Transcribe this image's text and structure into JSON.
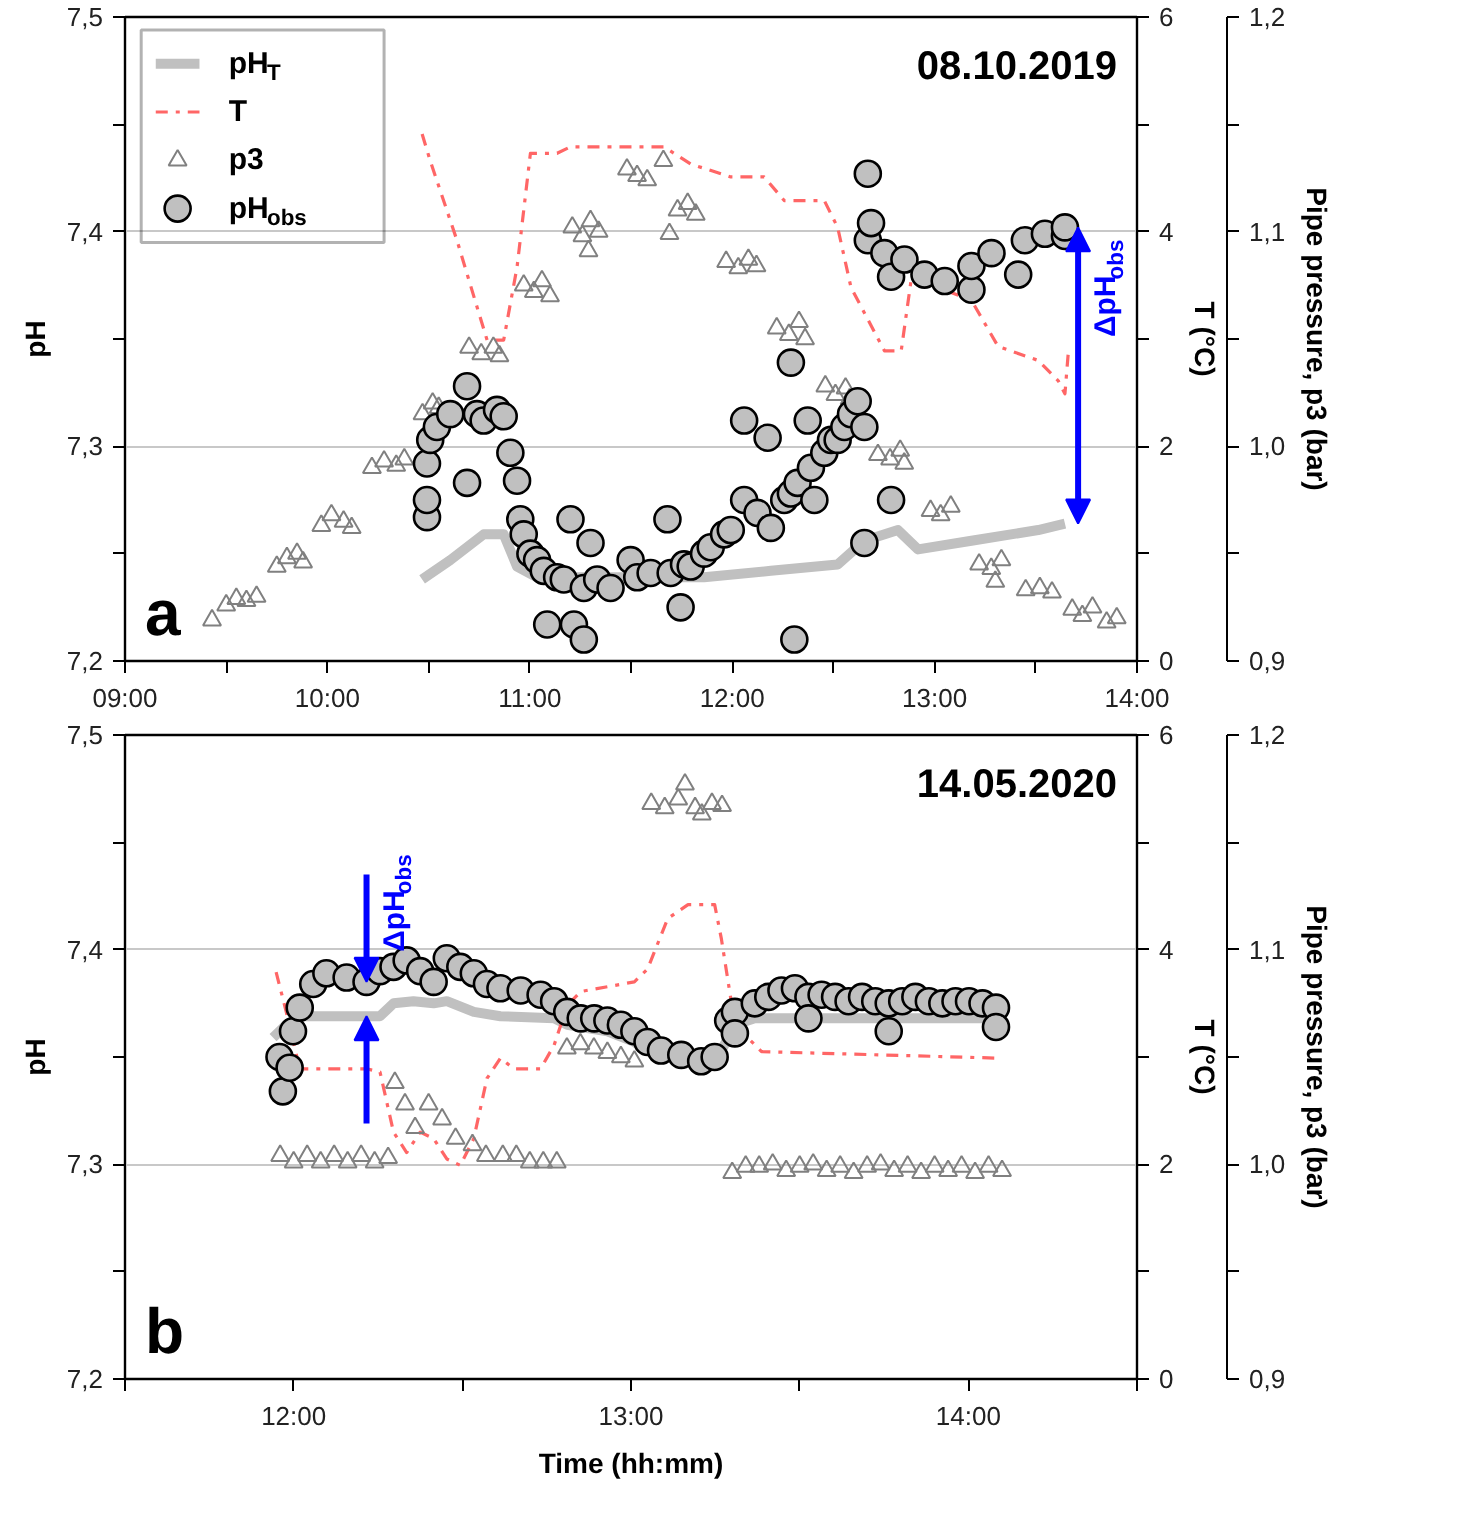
{
  "chart_data": [
    {
      "type": "line",
      "title": "08.10.2019",
      "ylabel": "pH",
      "y2label": "T (°C)",
      "y3label": "Pipe pressure, p3 (bar)",
      "xlim": [
        9,
        14
      ],
      "xticks": [
        {
          "value": 9,
          "label": "09:00"
        },
        {
          "value": 9.5,
          "label": null
        },
        {
          "value": 10,
          "label": "10:00"
        },
        {
          "value": 10.5,
          "label": null
        },
        {
          "value": 11,
          "label": "11:00"
        },
        {
          "value": 11.5,
          "label": null
        },
        {
          "value": 12,
          "label": "12:00"
        },
        {
          "value": 12.5,
          "label": null
        },
        {
          "value": 13,
          "label": "13:00"
        },
        {
          "value": 13.5,
          "label": null
        },
        {
          "value": 14,
          "label": "14:00"
        }
      ],
      "ylim": [
        7.2,
        7.5
      ],
      "yticks": [
        {
          "value": 7.2,
          "label": "7,2"
        },
        {
          "value": 7.25,
          "label": null
        },
        {
          "value": 7.3,
          "label": "7,3"
        },
        {
          "value": 7.35,
          "label": null
        },
        {
          "value": 7.4,
          "label": "7,4"
        },
        {
          "value": 7.45,
          "label": null
        },
        {
          "value": 7.5,
          "label": "7,5"
        }
      ],
      "y2lim": [
        0,
        6
      ],
      "y2ticks": [
        0,
        {
          "value": 1,
          "label": null
        },
        2,
        {
          "value": 3,
          "label": null
        },
        4,
        {
          "value": 5,
          "label": null
        },
        6
      ],
      "y3lim": [
        0.9,
        1.2
      ],
      "y3ticks": [
        {
          "value": 0.9,
          "label": "0,9"
        },
        {
          "value": 0.95,
          "label": null
        },
        {
          "value": 1.0,
          "label": "1,0"
        },
        {
          "value": 1.05,
          "label": null
        },
        {
          "value": 1.1,
          "label": "1,1"
        },
        {
          "value": 1.15,
          "label": null
        },
        {
          "value": 1.2,
          "label": "1,2"
        }
      ],
      "grid": "y",
      "legend": "top left",
      "annotations": [
        "a",
        {
          "text": "ΔpH$_{obs}$",
          "x": 13.644,
          "y": 7.402
        }
      ],
      "series": [
        {
          "name": "pH$_{T}$",
          "color": "#c0c0c0",
          "line_style": "solid",
          "x": [
            10.468,
            10.607,
            10.772,
            10.871,
            10.937,
            11.036,
            11.861,
            12.191,
            12.521,
            12.653,
            12.819,
            12.918,
            13.182,
            13.512,
            13.644
          ],
          "values": [
            7.238,
            7.247,
            7.259,
            7.259,
            7.244,
            7.239,
            7.239,
            7.242,
            7.245,
            7.256,
            7.261,
            7.252,
            7.256,
            7.261,
            7.264
          ]
        },
        {
          "name": "T",
          "axis": "y2",
          "color": "#ff6666",
          "line_style": "dashdot",
          "x": [
            10.468,
            10.508,
            10.64,
            10.739,
            10.789,
            10.871,
            10.937,
            11.003,
            11.135,
            11.201,
            11.663,
            11.795,
            11.993,
            12.158,
            12.257,
            12.455,
            12.521,
            12.587,
            12.752,
            12.835,
            12.884,
            13.017,
            13.182,
            13.314,
            13.512,
            13.611,
            13.644,
            13.66
          ],
          "values": [
            4.91,
            4.66,
            3.92,
            3.3,
            2.99,
            2.99,
            3.67,
            4.73,
            4.73,
            4.79,
            4.79,
            4.63,
            4.51,
            4.51,
            4.29,
            4.29,
            4.04,
            3.48,
            2.89,
            2.89,
            3.55,
            3.48,
            3.36,
            2.93,
            2.8,
            2.61,
            2.49,
            2.86
          ]
        },
        {
          "name": "p3",
          "type": "scatter",
          "axis": "y3",
          "marker": "triangle",
          "color": "#808080",
          "x": [
            9.43,
            9.5,
            9.55,
            9.6,
            9.65,
            9.75,
            9.8,
            9.85,
            9.88,
            9.97,
            10.02,
            10.08,
            10.12,
            10.22,
            10.28,
            10.34,
            10.38,
            10.47,
            10.52,
            10.55,
            10.7,
            10.76,
            10.82,
            10.85,
            10.97,
            11.02,
            11.06,
            11.1,
            11.21,
            11.26,
            11.29,
            11.3,
            11.34,
            11.48,
            11.53,
            11.58,
            11.66,
            11.69,
            11.73,
            11.78,
            11.82,
            11.97,
            12.03,
            12.08,
            12.12,
            12.22,
            12.28,
            12.33,
            12.36,
            12.46,
            12.51,
            12.56,
            12.58,
            12.72,
            12.78,
            12.83,
            12.85,
            12.98,
            13.03,
            13.08,
            13.22,
            13.28,
            13.3,
            13.33,
            13.45,
            13.52,
            13.58,
            13.68,
            13.73,
            13.78,
            13.85,
            13.9
          ],
          "values": [
            0.919,
            0.926,
            0.929,
            0.928,
            0.93,
            0.944,
            0.948,
            0.95,
            0.946,
            0.963,
            0.968,
            0.965,
            0.962,
            0.99,
            0.993,
            0.991,
            0.994,
            1.015,
            1.02,
            1.018,
            1.046,
            1.043,
            1.046,
            1.042,
            1.075,
            1.072,
            1.077,
            1.07,
            1.102,
            1.098,
            1.091,
            1.105,
            1.1,
            1.129,
            1.126,
            1.124,
            1.133,
            1.099,
            1.11,
            1.113,
            1.108,
            1.086,
            1.083,
            1.087,
            1.084,
            1.055,
            1.052,
            1.058,
            1.05,
            1.028,
            1.024,
            1.027,
            1.022,
            0.996,
            0.994,
            0.998,
            0.992,
            0.97,
            0.968,
            0.972,
            0.945,
            0.943,
            0.937,
            0.947,
            0.933,
            0.934,
            0.932,
            0.924,
            0.921,
            0.925,
            0.918,
            0.92
          ]
        },
        {
          "name": "pH$_{obs}$",
          "type": "scatter",
          "marker": "circle",
          "color": "#c0c0c0",
          "x": [
            10.492,
            10.492,
            10.492,
            10.508,
            10.541,
            10.607,
            10.69,
            10.69,
            10.739,
            10.772,
            10.838,
            10.871,
            10.904,
            10.937,
            10.953,
            10.97,
            11.003,
            11.036,
            11.069,
            11.086,
            11.135,
            11.168,
            11.201,
            11.218,
            11.267,
            11.267,
            11.3,
            11.333,
            11.399,
            11.498,
            11.531,
            11.597,
            11.68,
            11.696,
            11.745,
            11.762,
            11.795,
            11.861,
            11.894,
            11.96,
            11.993,
            12.059,
            12.059,
            12.125,
            12.175,
            12.191,
            12.257,
            12.29,
            12.29,
            12.307,
            12.323,
            12.373,
            12.389,
            12.406,
            12.455,
            12.488,
            12.521,
            12.554,
            12.587,
            12.62,
            12.653,
            12.653,
            12.67,
            12.67,
            12.686,
            12.752,
            12.785,
            12.785,
            12.851,
            12.95,
            13.05,
            13.182,
            13.182,
            13.281,
            13.413,
            13.446,
            13.545,
            13.644,
            13.644
          ],
          "values": [
            7.267,
            7.275,
            7.292,
            7.303,
            7.309,
            7.315,
            7.328,
            7.283,
            7.315,
            7.312,
            7.317,
            7.314,
            7.297,
            7.284,
            7.266,
            7.259,
            7.25,
            7.247,
            7.242,
            7.217,
            7.239,
            7.238,
            7.266,
            7.217,
            7.234,
            7.21,
            7.255,
            7.238,
            7.234,
            7.247,
            7.239,
            7.241,
            7.266,
            7.241,
            7.225,
            7.245,
            7.244,
            7.25,
            7.253,
            7.259,
            7.261,
            7.275,
            7.312,
            7.269,
            7.304,
            7.262,
            7.275,
            7.278,
            7.339,
            7.21,
            7.283,
            7.312,
            7.29,
            7.275,
            7.297,
            7.303,
            7.303,
            7.309,
            7.315,
            7.321,
            7.309,
            7.255,
            7.427,
            7.396,
            7.404,
            7.39,
            7.379,
            7.275,
            7.387,
            7.38,
            7.377,
            7.373,
            7.384,
            7.39,
            7.38,
            7.396,
            7.399,
            7.398,
            7.402
          ]
        }
      ]
    },
    {
      "type": "line",
      "title": "14.05.2020",
      "xlabel": "Time (hh:mm)",
      "ylabel": "pH",
      "y2label": "T (°C)",
      "y3label": "Pipe pressure, p3 (bar)",
      "xlim": [
        11.5,
        14.5
      ],
      "xticks": [
        {
          "value": 11.5,
          "label": null
        },
        {
          "value": 12,
          "label": "12:00"
        },
        {
          "value": 12.5,
          "label": null
        },
        {
          "value": 13,
          "label": "13:00"
        },
        {
          "value": 13.5,
          "label": null
        },
        {
          "value": 14,
          "label": "14:00"
        },
        {
          "value": 14.5,
          "label": null
        }
      ],
      "ylim": [
        7.2,
        7.5
      ],
      "yticks": [
        {
          "value": 7.2,
          "label": "7,2"
        },
        {
          "value": 7.25,
          "label": null
        },
        {
          "value": 7.3,
          "label": "7,3"
        },
        {
          "value": 7.35,
          "label": null
        },
        {
          "value": 7.4,
          "label": "7,4"
        },
        {
          "value": 7.45,
          "label": null
        },
        {
          "value": 7.5,
          "label": "7,5"
        }
      ],
      "y2lim": [
        0,
        6
      ],
      "y2ticks": [
        0,
        {
          "value": 1,
          "label": null
        },
        2,
        {
          "value": 3,
          "label": null
        },
        4,
        {
          "value": 5,
          "label": null
        },
        6
      ],
      "y3lim": [
        0.9,
        1.2
      ],
      "y3ticks": [
        {
          "value": 0.9,
          "label": "0,9"
        },
        {
          "value": 0.95,
          "label": null
        },
        {
          "value": 1.0,
          "label": "1,0"
        },
        {
          "value": 1.05,
          "label": null
        },
        {
          "value": 1.1,
          "label": "1,1"
        },
        {
          "value": 1.15,
          "label": null
        },
        {
          "value": 1.2,
          "label": "1,2"
        }
      ],
      "grid": "y",
      "annotations": [
        "b",
        {
          "text": "ΔpH$_{obs}$",
          "x": 12.216,
          "y": 7.385
        }
      ],
      "series": [
        {
          "color": "#c0c0c0",
          "line_style": "solid",
          "x": [
            11.939,
            11.978,
            12.018,
            12.256,
            12.296,
            12.355,
            12.415,
            12.454,
            12.534,
            12.613,
            12.772,
            12.811,
            12.93,
            13.01,
            13.049,
            13.208,
            13.268,
            13.308,
            13.367,
            14.082
          ],
          "values": [
            7.359,
            7.365,
            7.369,
            7.369,
            7.375,
            7.376,
            7.375,
            7.376,
            7.371,
            7.369,
            7.368,
            7.365,
            7.362,
            7.357,
            7.353,
            7.351,
            7.353,
            7.365,
            7.368,
            7.368
          ]
        },
        {
          "axis": "y2",
          "color": "#ff6666",
          "line_style": "dashdot",
          "x": [
            11.948,
            11.978,
            12.018,
            12.137,
            12.216,
            12.256,
            12.296,
            12.335,
            12.375,
            12.415,
            12.454,
            12.494,
            12.534,
            12.573,
            12.613,
            12.653,
            12.732,
            12.772,
            12.811,
            12.851,
            13.01,
            13.049,
            13.109,
            13.169,
            13.248,
            13.268,
            13.308,
            13.387,
            14.082
          ],
          "values": [
            3.79,
            3.42,
            2.89,
            2.89,
            2.89,
            2.86,
            2.3,
            2.11,
            2.3,
            2.24,
            2.05,
            1.99,
            2.24,
            2.8,
            2.99,
            2.89,
            2.89,
            3.11,
            3.48,
            3.61,
            3.7,
            3.82,
            4.29,
            4.42,
            4.42,
            4.1,
            3.3,
            3.05,
            2.99
          ]
        },
        {
          "type": "scatter",
          "axis": "y3",
          "marker": "triangle",
          "color": "#808080",
          "x": [
            11.96,
            12.0,
            12.04,
            12.08,
            12.12,
            12.16,
            12.2,
            12.24,
            12.28,
            12.3,
            12.33,
            12.36,
            12.4,
            12.44,
            12.48,
            12.53,
            12.57,
            12.62,
            12.66,
            12.7,
            12.74,
            12.78,
            12.81,
            12.85,
            12.89,
            12.93,
            12.97,
            13.01,
            13.06,
            13.1,
            13.14,
            13.16,
            13.19,
            13.21,
            13.24,
            13.27,
            13.3,
            13.34,
            13.38,
            13.42,
            13.46,
            13.5,
            13.54,
            13.58,
            13.62,
            13.66,
            13.7,
            13.74,
            13.78,
            13.82,
            13.86,
            13.9,
            13.94,
            13.98,
            14.02,
            14.06,
            14.1
          ],
          "values": [
            1.004,
            1.001,
            1.004,
            1.001,
            1.004,
            1.001,
            1.004,
            1.001,
            1.003,
            1.038,
            1.028,
            1.017,
            1.028,
            1.021,
            1.012,
            1.009,
            1.004,
            1.004,
            1.004,
            1.001,
            1.001,
            1.001,
            1.054,
            1.056,
            1.054,
            1.052,
            1.05,
            1.048,
            1.168,
            1.166,
            1.17,
            1.177,
            1.166,
            1.163,
            1.168,
            1.167,
            0.996,
            0.999,
            0.999,
            1.0,
            0.997,
            0.999,
            1.0,
            0.997,
            0.999,
            0.996,
            0.999,
            1.0,
            0.997,
            0.999,
            0.996,
            0.999,
            0.997,
            0.999,
            0.996,
            0.999,
            0.997
          ]
        },
        {
          "type": "scatter",
          "marker": "circle",
          "color": "#c0c0c0",
          "x": [
            11.958,
            11.968,
            11.988,
            11.998,
            12.018,
            12.058,
            12.097,
            12.157,
            12.216,
            12.256,
            12.296,
            12.335,
            12.375,
            12.415,
            12.454,
            12.494,
            12.534,
            12.573,
            12.613,
            12.673,
            12.732,
            12.772,
            12.811,
            12.851,
            12.891,
            12.93,
            12.97,
            13.01,
            13.049,
            13.089,
            13.149,
            13.208,
            13.248,
            13.288,
            13.308,
            13.308,
            13.367,
            13.407,
            13.446,
            13.486,
            13.526,
            13.526,
            13.565,
            13.605,
            13.645,
            13.685,
            13.724,
            13.764,
            13.764,
            13.804,
            13.843,
            13.883,
            13.923,
            13.962,
            14.002,
            14.042,
            14.082,
            14.082
          ],
          "values": [
            7.35,
            7.334,
            7.345,
            7.362,
            7.373,
            7.384,
            7.389,
            7.387,
            7.385,
            7.39,
            7.392,
            7.395,
            7.39,
            7.385,
            7.396,
            7.392,
            7.389,
            7.384,
            7.382,
            7.381,
            7.379,
            7.376,
            7.371,
            7.368,
            7.368,
            7.367,
            7.365,
            7.362,
            7.357,
            7.353,
            7.351,
            7.348,
            7.35,
            7.367,
            7.371,
            7.361,
            7.375,
            7.378,
            7.381,
            7.382,
            7.378,
            7.368,
            7.379,
            7.378,
            7.376,
            7.378,
            7.376,
            7.375,
            7.362,
            7.376,
            7.378,
            7.376,
            7.375,
            7.376,
            7.376,
            7.375,
            7.373,
            7.364
          ]
        }
      ]
    }
  ]
}
